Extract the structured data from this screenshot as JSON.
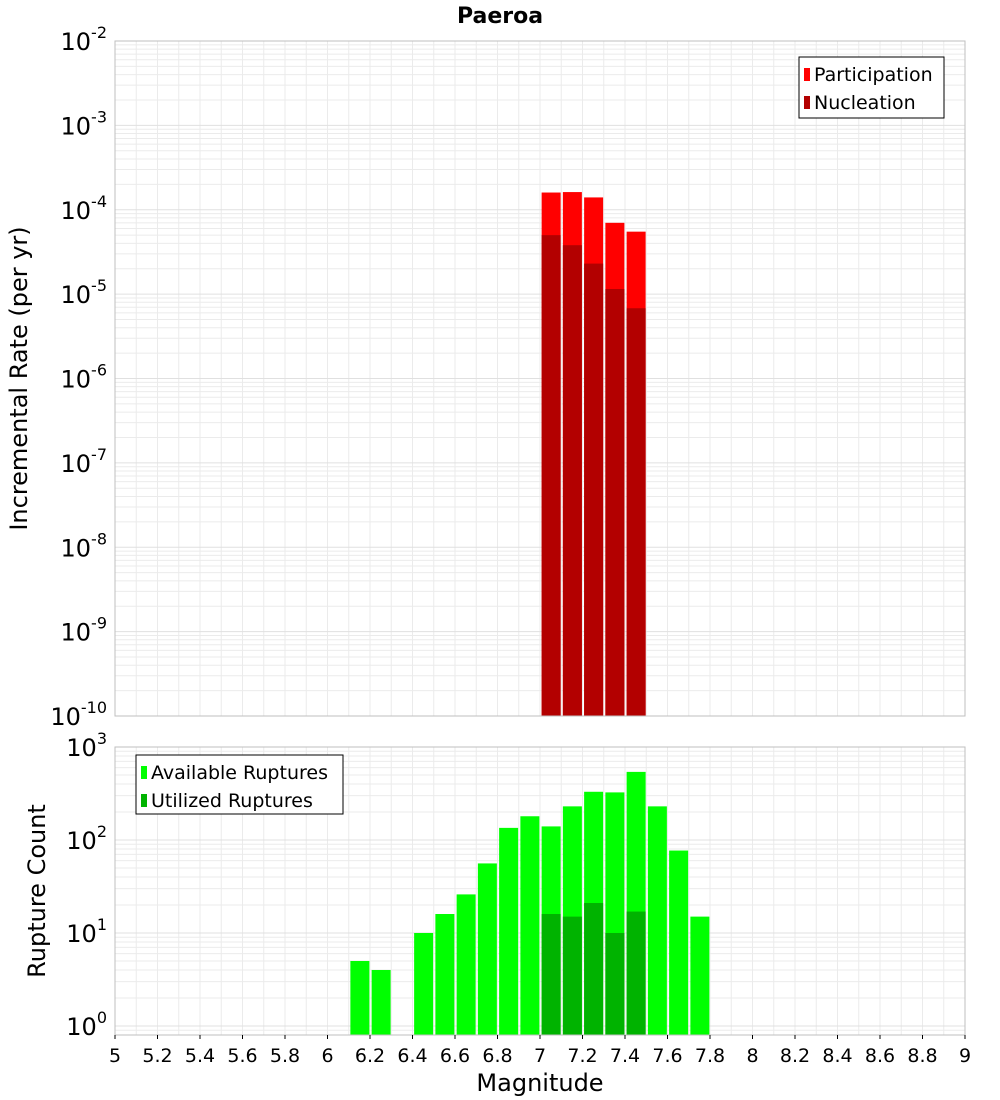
{
  "title": "Paeroa",
  "colors": {
    "participation": "#ff0000",
    "nucleation": "#b30000",
    "available": "#00ff00",
    "utilized": "#00b300",
    "grid": "#ebebeb",
    "frame": "#bfbfbf"
  },
  "chart_data": [
    {
      "type": "bar",
      "title": "Paeroa",
      "xlabel": "Magnitude",
      "ylabel": "Incremental Rate (per yr)",
      "y_scale": "log",
      "xlim": [
        5,
        9
      ],
      "ylim": [
        1e-10,
        0.01
      ],
      "y_tick_exponents": [
        -10,
        -9,
        -8,
        -7,
        -6,
        -5,
        -4,
        -3,
        -2
      ],
      "grid": true,
      "legend_position": "top-right",
      "x": [
        7.05,
        7.15,
        7.25,
        7.35,
        7.45
      ],
      "series": [
        {
          "name": "Participation",
          "values": [
            0.00016,
            0.000162,
            0.00014,
            7e-05,
            5.5e-05
          ]
        },
        {
          "name": "Nucleation",
          "values": [
            5e-05,
            3.8e-05,
            2.3e-05,
            1.15e-05,
            6.8e-06
          ]
        }
      ]
    },
    {
      "type": "bar",
      "title": "",
      "xlabel": "Magnitude",
      "ylabel": "Rupture Count",
      "y_scale": "log",
      "xlim": [
        5,
        9
      ],
      "ylim": [
        0.8,
        1000
      ],
      "y_tick_exponents": [
        0,
        1,
        2,
        3
      ],
      "x_ticks": [
        "5",
        "5.2",
        "5.4",
        "5.6",
        "5.8",
        "6",
        "6.2",
        "6.4",
        "6.6",
        "6.8",
        "7",
        "7.2",
        "7.4",
        "7.6",
        "7.8",
        "8",
        "8.2",
        "8.4",
        "8.6",
        "8.8",
        "9"
      ],
      "grid": true,
      "legend_position": "top-left",
      "series": [
        {
          "name": "Available Ruptures",
          "x": [
            6.15,
            6.25,
            6.45,
            6.55,
            6.65,
            6.75,
            6.85,
            6.95,
            7.05,
            7.15,
            7.25,
            7.35,
            7.45,
            7.55,
            7.65,
            7.75
          ],
          "values": [
            5,
            4,
            10,
            16,
            26,
            56,
            135,
            180,
            140,
            230,
            330,
            325,
            540,
            230,
            77,
            15
          ]
        },
        {
          "name": "Utilized Ruptures",
          "x": [
            7.05,
            7.15,
            7.25,
            7.35,
            7.45
          ],
          "values": [
            16,
            15,
            21,
            10,
            17
          ]
        }
      ]
    }
  ]
}
